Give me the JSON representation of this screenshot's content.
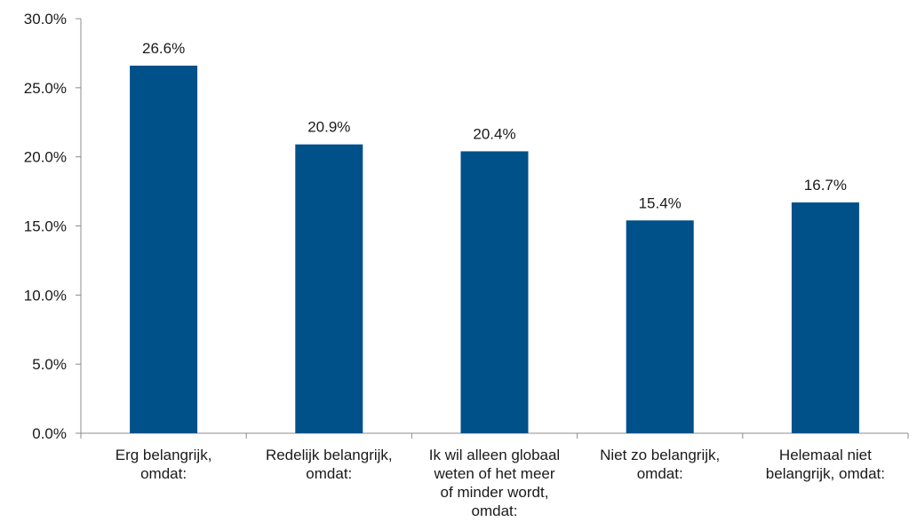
{
  "chart_data": {
    "type": "bar",
    "categories": [
      [
        "Erg belangrijk,",
        "omdat:"
      ],
      [
        "Redelijk belangrijk,",
        "omdat:"
      ],
      [
        "Ik wil alleen globaal",
        "weten of het meer",
        "of minder wordt,",
        "omdat:"
      ],
      [
        "Niet zo belangrijk,",
        "omdat:"
      ],
      [
        "Helemaal niet",
        "belangrijk, omdat:"
      ]
    ],
    "values": [
      26.6,
      20.9,
      20.4,
      15.4,
      16.7
    ],
    "data_labels": [
      "26.6%",
      "20.9%",
      "20.4%",
      "15.4%",
      "16.7%"
    ],
    "ylim": [
      0,
      30
    ],
    "yticks": [
      0,
      5,
      10,
      15,
      20,
      25,
      30
    ],
    "ytick_labels": [
      "0.0%",
      "5.0%",
      "10.0%",
      "15.0%",
      "20.0%",
      "25.0%",
      "30.0%"
    ],
    "bar_color": "#00508a",
    "grid": false,
    "legend": "none"
  }
}
